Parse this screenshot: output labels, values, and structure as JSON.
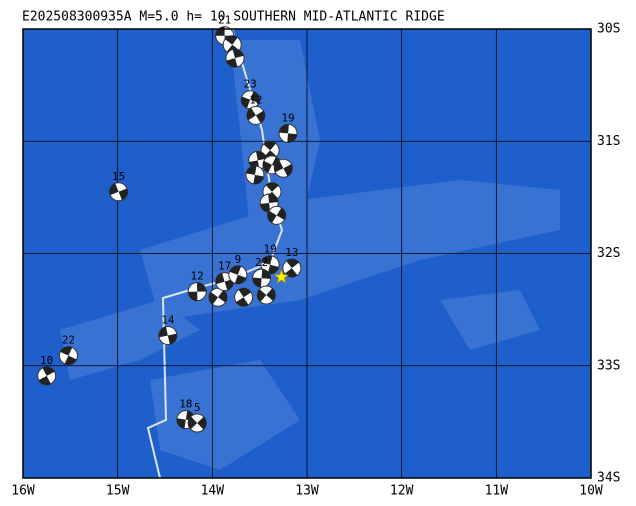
{
  "map": {
    "title": "E202508300935A M=5.0 h= 10 SOUTHERN MID-ATLANTIC RIDGE",
    "xlim": [
      -16,
      -10
    ],
    "ylim": [
      -34,
      -30
    ],
    "xticks": [
      {
        "value": -16,
        "label": "16W"
      },
      {
        "value": -15,
        "label": "15W"
      },
      {
        "value": -14,
        "label": "14W"
      },
      {
        "value": -13,
        "label": "13W"
      },
      {
        "value": -12,
        "label": "12W"
      },
      {
        "value": -11,
        "label": "11W"
      },
      {
        "value": -10,
        "label": "10W"
      }
    ],
    "yticks": [
      {
        "value": -30,
        "label": "30S"
      },
      {
        "value": -31,
        "label": "31S"
      },
      {
        "value": -32,
        "label": "32S"
      },
      {
        "value": -33,
        "label": "33S"
      },
      {
        "value": -34,
        "label": "34S"
      }
    ],
    "events": [
      {
        "lon": -13.87,
        "lat": -30.06,
        "label": "21"
      },
      {
        "lon": -13.79,
        "lat": -30.14
      },
      {
        "lon": -13.76,
        "lat": -30.26
      },
      {
        "lon": -13.6,
        "lat": -30.63,
        "label": "23"
      },
      {
        "lon": -13.54,
        "lat": -30.77,
        "label": "12"
      },
      {
        "lon": -13.2,
        "lat": -30.93,
        "label": "19"
      },
      {
        "lon": -13.39,
        "lat": -31.08
      },
      {
        "lon": -13.52,
        "lat": -31.17
      },
      {
        "lon": -13.37,
        "lat": -31.21
      },
      {
        "lon": -13.25,
        "lat": -31.24
      },
      {
        "lon": -13.55,
        "lat": -31.3
      },
      {
        "lon": -13.37,
        "lat": -31.45
      },
      {
        "lon": -13.4,
        "lat": -31.55
      },
      {
        "lon": -13.32,
        "lat": -31.66
      },
      {
        "lon": -14.99,
        "lat": -31.45,
        "label": "15"
      },
      {
        "lon": -13.39,
        "lat": -32.1,
        "label": "19"
      },
      {
        "lon": -13.16,
        "lat": -32.13,
        "label": "13"
      },
      {
        "lon": -14.16,
        "lat": -32.34,
        "label": "12"
      },
      {
        "lon": -13.94,
        "lat": -32.39
      },
      {
        "lon": -13.87,
        "lat": -32.25,
        "label": "17"
      },
      {
        "lon": -13.73,
        "lat": -32.19,
        "label": "9"
      },
      {
        "lon": -13.67,
        "lat": -32.39
      },
      {
        "lon": -13.48,
        "lat": -32.22,
        "label": "22"
      },
      {
        "lon": -13.43,
        "lat": -32.37
      },
      {
        "lon": -14.47,
        "lat": -32.73,
        "label": "14"
      },
      {
        "lon": -15.52,
        "lat": -32.91,
        "label": "22"
      },
      {
        "lon": -15.75,
        "lat": -33.09,
        "label": "10"
      },
      {
        "lon": -14.28,
        "lat": -33.48,
        "label": "18"
      },
      {
        "lon": -14.16,
        "lat": -33.51,
        "label": "5"
      }
    ],
    "main_event": {
      "lon": -13.27,
      "lat": -32.21
    }
  }
}
